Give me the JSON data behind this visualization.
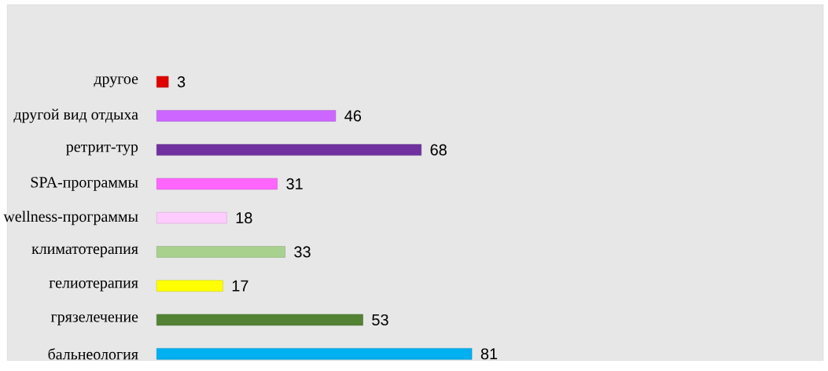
{
  "chart_data": {
    "type": "bar",
    "orientation": "horizontal",
    "data_labels": true,
    "categories": [
      "другое",
      "другой вид отдыха",
      "ретрит-тур",
      "SPA-программы",
      "wellness-программы",
      "климатотерапия",
      "гелиотерапия",
      "грязелечение",
      "бальнеология"
    ],
    "values": [
      3,
      46,
      68,
      31,
      18,
      33,
      17,
      53,
      81
    ],
    "colors": [
      "#e00000",
      "#cc66ff",
      "#7030a0",
      "#ff66ff",
      "#ffccff",
      "#a9d18e",
      "#ffff00",
      "#548235",
      "#00b0f0"
    ]
  }
}
